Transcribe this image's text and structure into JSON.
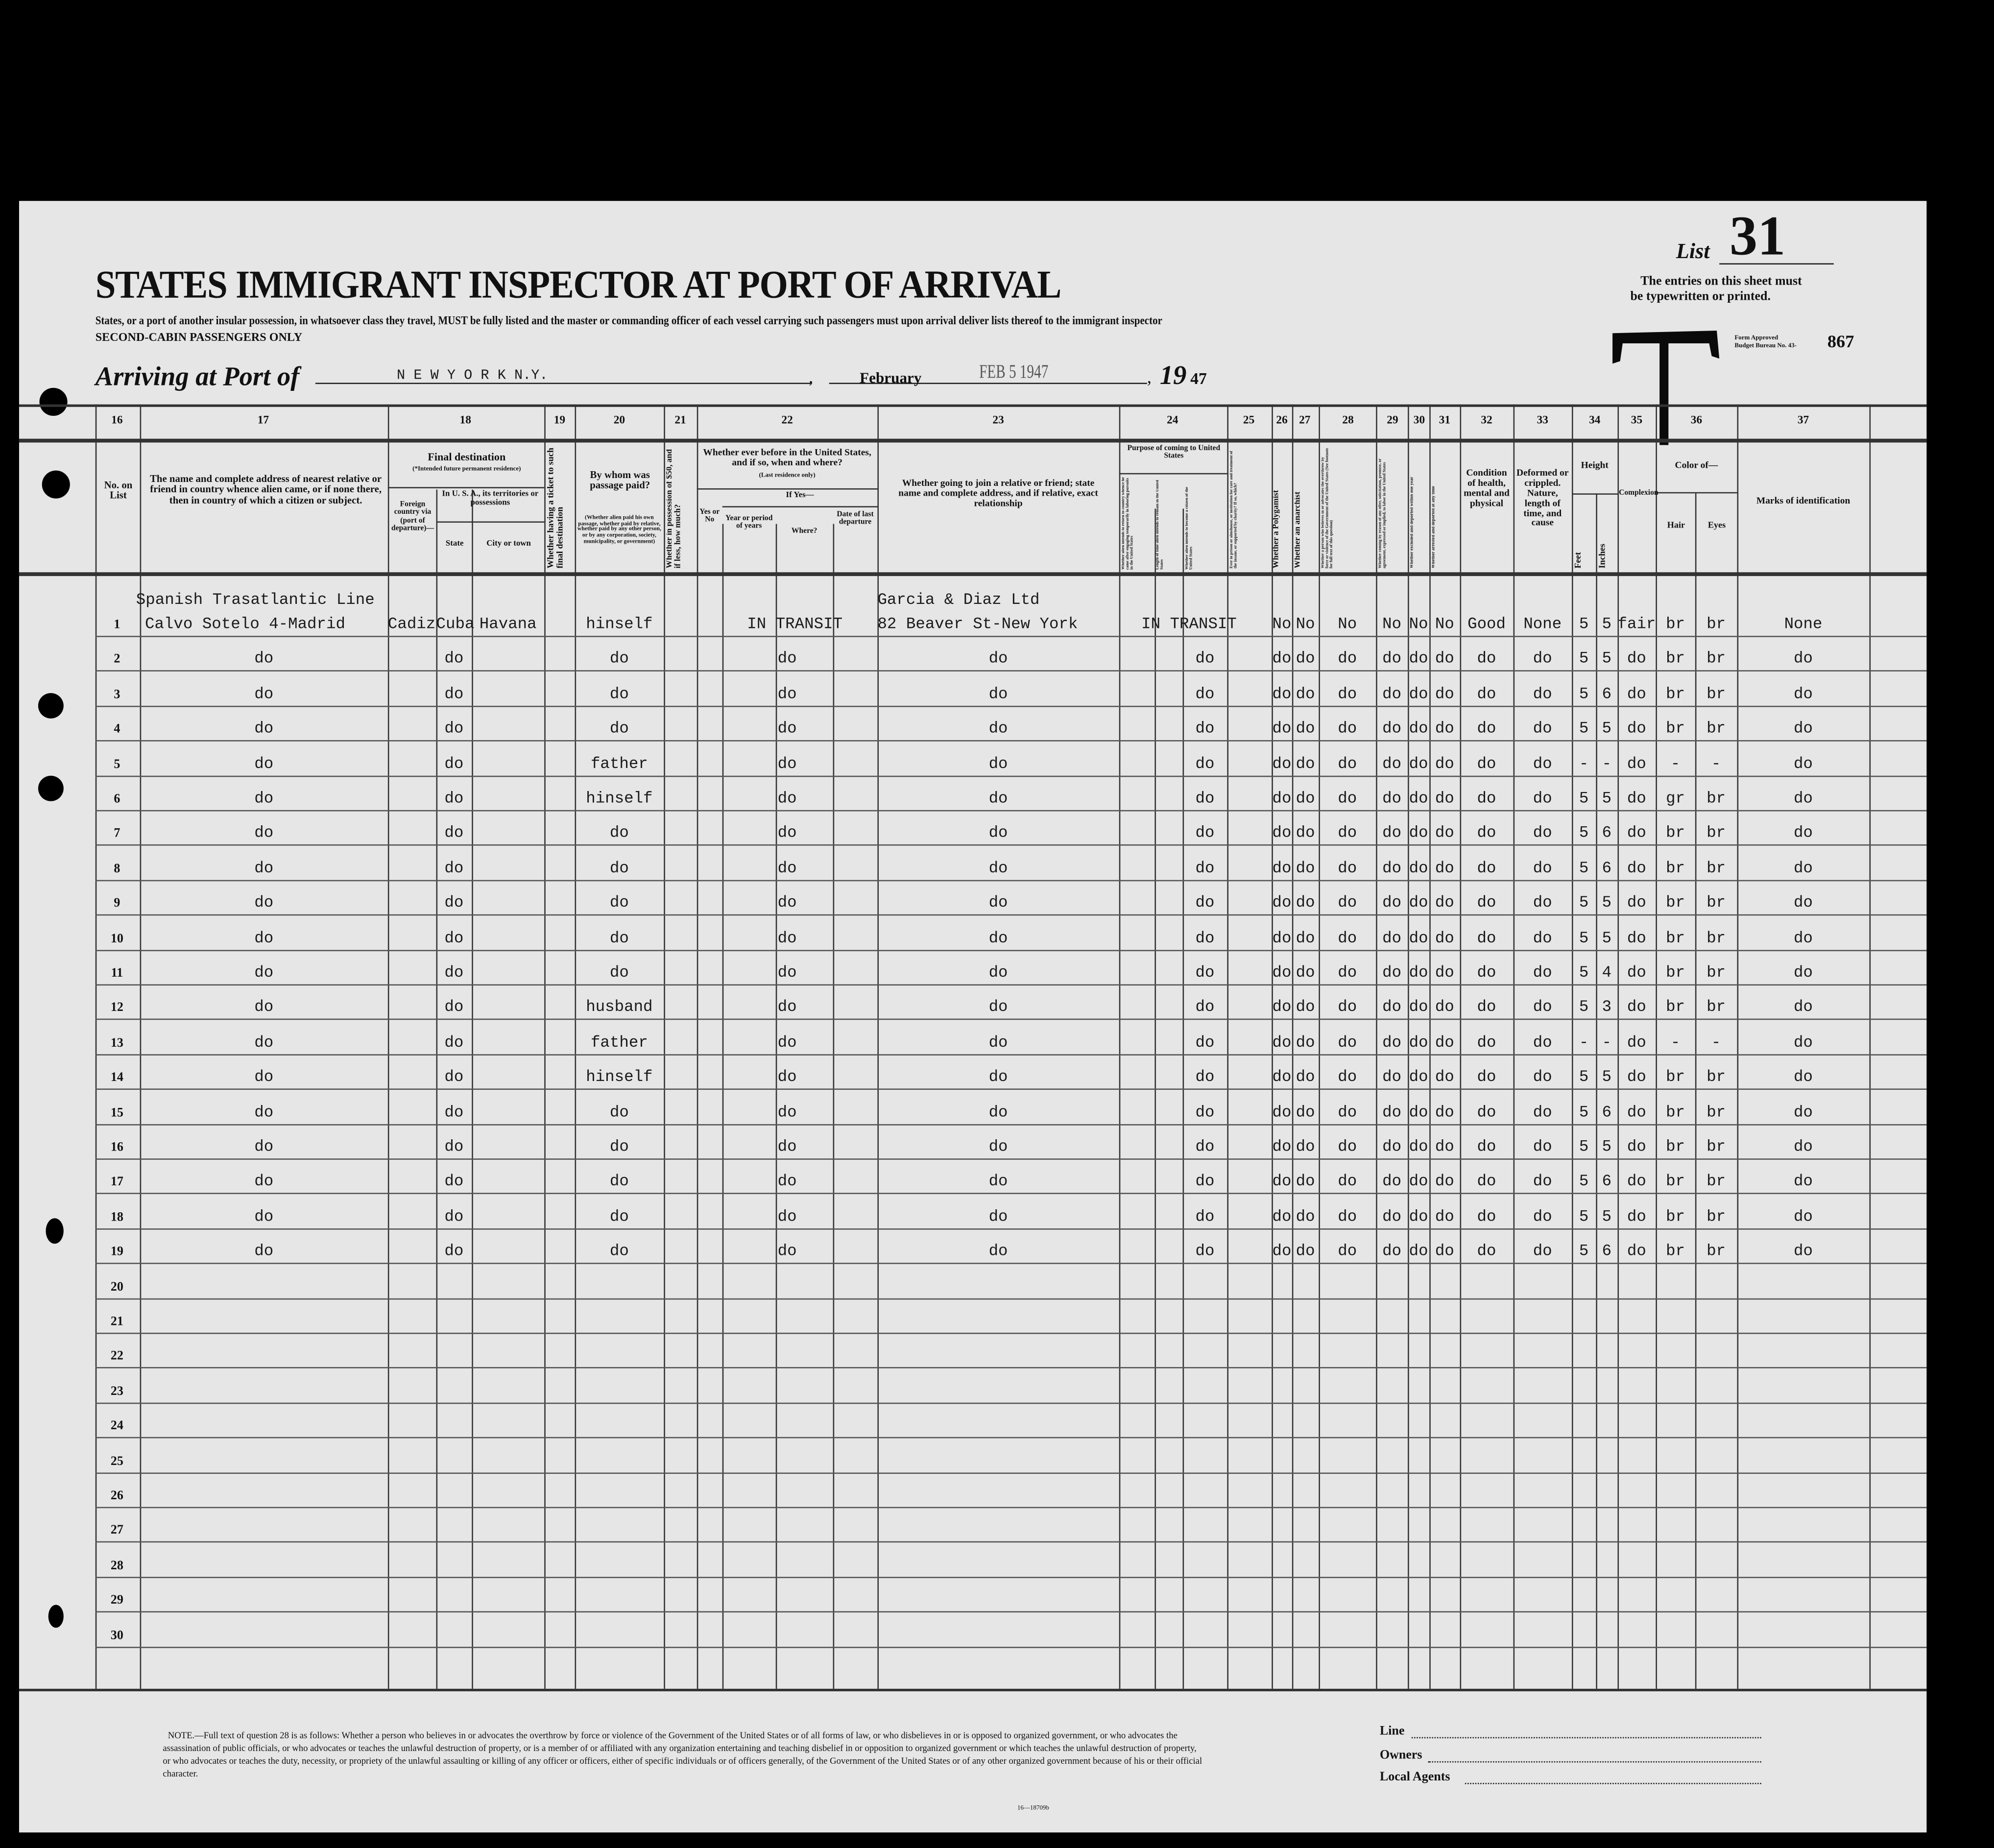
{
  "header": {
    "list_label": "List",
    "list_number": "31",
    "title": "STATES IMMIGRANT INSPECTOR AT PORT OF ARRIVAL",
    "notice_line1": "The entries on this sheet must",
    "notice_line2": "be typewritten or printed.",
    "subtitle": "States, or a port of another insular possession, in whatsoever class they travel, MUST be fully listed and the master or commanding officer of each vessel carrying such passengers must upon arrival deliver lists thereof to the immigrant inspector",
    "cabin_class": "SECOND-CABIN PASSENGERS ONLY",
    "stamp_letter": "T",
    "form_approved": "Form Approved",
    "budget_bureau": "Budget Bureau No. 43-",
    "budget_number": "867",
    "arriving_label": "Arriving at Port of",
    "port": "N E W   Y O R K   N.Y.",
    "month": "February",
    "date_stamp": "FEB 5 1947",
    "year_prefix": "19",
    "year_suffix": "47"
  },
  "columns": {
    "numbers": [
      "16",
      "17",
      "18",
      "19",
      "20",
      "21",
      "22",
      "23",
      "24",
      "25",
      "26",
      "27",
      "28",
      "29",
      "30",
      "31",
      "32",
      "33",
      "34",
      "35",
      "36",
      "37"
    ],
    "c16": "No. on List",
    "c17": "The name and complete address of nearest relative or friend in country whence alien came, or if none there, then in country of which a citizen or subject.",
    "c18_title": "Final destination",
    "c18_note": "(*Intended future permanent residence)",
    "c18_foreign": "Foreign country via (port of departure)—",
    "c18_usa": "In U. S. A., its territories or possessions",
    "c18_state": "State",
    "c18_city": "City or town",
    "c19": "Whether having a ticket to such final destination",
    "c20_title": "By whom was passage paid?",
    "c20_note": "(Whether alien paid his own passage, whether paid by relative, whether paid by any other person, or by any corporation, society, municipality, or government)",
    "c21": "Whether in possession of $50, and if less, how much?",
    "c22_title": "Whether ever before in the United States, and if so, when and where?",
    "c22_note": "(Last residence only)",
    "c22_ifyes": "If Yes—",
    "c22_yesno": "Yes or No",
    "c22_year": "Year or period of years",
    "c22_where": "Where?",
    "c22_date": "Date of last departure",
    "c23": "Whether going to join a relative or friend; state name and complete address, and if relative, exact relationship",
    "c24_title": "Purpose of coming to United States",
    "c24a": "Whether alien intends to return to country whence he came after engaging temporarily in laboring pursuits in the United States",
    "c24b": "Length of time alien intends to remain in the United States",
    "c24c": "Whether alien intends to become a citizen of the United States",
    "c25": "Ever in prison or almshouse, or institution for care and treatment of the insane, or supported by charity? If so, which?",
    "c26": "Whether a Polygamist",
    "c27": "Whether an anarchist",
    "c28": "Whether a person who believes in or advocates the overthrow by force or violence of the Government of the United States (See footnote for full text of this question)",
    "c29": "Whether coming by reason of any offer, solicitation, promise, or agreement, expressed or implied, to labor in the United States",
    "c30": "Whether excluded and deported within one year",
    "c31": "Whether arrested and deported at any time",
    "c32": "Condition of health, mental and physical",
    "c33": "Deformed or crippled. Nature, length of time, and cause",
    "c34_title": "Height",
    "c34_feet": "Feet",
    "c34_inches": "Inches",
    "c35": "Complexion",
    "c36_title": "Color of—",
    "c36_hair": "Hair",
    "c36_eyes": "Eyes",
    "c37": "Marks of identification"
  },
  "rows": [
    {
      "no": "1",
      "c17_pre": "Spanish Trasatlantic Line",
      "c17": "Calvo Sotelo 4-Madrid",
      "foreign": "Cadiz",
      "state": "Cuba",
      "city": "Havana",
      "c20": "hinself",
      "c22": "IN  TRANSIT",
      "c23_pre": "Garcia & Diaz Ltd",
      "c23": "82 Beaver St-New York",
      "c24": "IN  TRANSIT",
      "c26": "No",
      "c27": "No",
      "c28": "No",
      "c29": "No",
      "c30": "No",
      "c31": "No",
      "c32": "Good",
      "c33": "None",
      "feet": "5",
      "inches": "5",
      "c35": "fair",
      "hair": "br",
      "eyes": "br",
      "c37": "None"
    },
    {
      "no": "2",
      "c17": "do",
      "state": "do",
      "c20": "do",
      "c22": "do",
      "c23": "do",
      "c24": "do",
      "c26": "do",
      "c27": "do",
      "c28": "do",
      "c29": "do",
      "c30": "do",
      "c31": "do",
      "c32": "do",
      "c33": "do",
      "feet": "5",
      "inches": "5",
      "c35": "do",
      "hair": "br",
      "eyes": "br",
      "c37": "do"
    },
    {
      "no": "3",
      "c17": "do",
      "state": "do",
      "c20": "do",
      "c22": "do",
      "c23": "do",
      "c24": "do",
      "c26": "do",
      "c27": "do",
      "c28": "do",
      "c29": "do",
      "c30": "do",
      "c31": "do",
      "c32": "do",
      "c33": "do",
      "feet": "5",
      "inches": "6",
      "c35": "do",
      "hair": "br",
      "eyes": "br",
      "c37": "do"
    },
    {
      "no": "4",
      "c17": "do",
      "state": "do",
      "c20": "do",
      "c22": "do",
      "c23": "do",
      "c24": "do",
      "c26": "do",
      "c27": "do",
      "c28": "do",
      "c29": "do",
      "c30": "do",
      "c31": "do",
      "c32": "do",
      "c33": "do",
      "feet": "5",
      "inches": "5",
      "c35": "do",
      "hair": "br",
      "eyes": "br",
      "c37": "do"
    },
    {
      "no": "5",
      "c17": "do",
      "state": "do",
      "c20": "father",
      "c22": "do",
      "c23": "do",
      "c24": "do",
      "c26": "do",
      "c27": "do",
      "c28": "do",
      "c29": "do",
      "c30": "do",
      "c31": "do",
      "c32": "do",
      "c33": "do",
      "feet": "-",
      "inches": "-",
      "c35": "do",
      "hair": "-",
      "eyes": "-",
      "c37": "do"
    },
    {
      "no": "6",
      "c17": "do",
      "state": "do",
      "c20": "hinself",
      "c22": "do",
      "c23": "do",
      "c24": "do",
      "c26": "do",
      "c27": "do",
      "c28": "do",
      "c29": "do",
      "c30": "do",
      "c31": "do",
      "c32": "do",
      "c33": "do",
      "feet": "5",
      "inches": "5",
      "c35": "do",
      "hair": "gr",
      "eyes": "br",
      "c37": "do"
    },
    {
      "no": "7",
      "c17": "do",
      "state": "do",
      "c20": "do",
      "c22": "do",
      "c23": "do",
      "c24": "do",
      "c26": "do",
      "c27": "do",
      "c28": "do",
      "c29": "do",
      "c30": "do",
      "c31": "do",
      "c32": "do",
      "c33": "do",
      "feet": "5",
      "inches": "6",
      "c35": "do",
      "hair": "br",
      "eyes": "br",
      "c37": "do"
    },
    {
      "no": "8",
      "c17": "do",
      "state": "do",
      "c20": "do",
      "c22": "do",
      "c23": "do",
      "c24": "do",
      "c26": "do",
      "c27": "do",
      "c28": "do",
      "c29": "do",
      "c30": "do",
      "c31": "do",
      "c32": "do",
      "c33": "do",
      "feet": "5",
      "inches": "6",
      "c35": "do",
      "hair": "br",
      "eyes": "br",
      "c37": "do"
    },
    {
      "no": "9",
      "c17": "do",
      "state": "do",
      "c20": "do",
      "c22": "do",
      "c23": "do",
      "c24": "do",
      "c26": "do",
      "c27": "do",
      "c28": "do",
      "c29": "do",
      "c30": "do",
      "c31": "do",
      "c32": "do",
      "c33": "do",
      "feet": "5",
      "inches": "5",
      "c35": "do",
      "hair": "br",
      "eyes": "br",
      "c37": "do"
    },
    {
      "no": "10",
      "c17": "do",
      "state": "do",
      "c20": "do",
      "c22": "do",
      "c23": "do",
      "c24": "do",
      "c26": "do",
      "c27": "do",
      "c28": "do",
      "c29": "do",
      "c30": "do",
      "c31": "do",
      "c32": "do",
      "c33": "do",
      "feet": "5",
      "inches": "5",
      "c35": "do",
      "hair": "br",
      "eyes": "br",
      "c37": "do"
    },
    {
      "no": "11",
      "c17": "do",
      "state": "do",
      "c20": "do",
      "c22": "do",
      "c23": "do",
      "c24": "do",
      "c26": "do",
      "c27": "do",
      "c28": "do",
      "c29": "do",
      "c30": "do",
      "c31": "do",
      "c32": "do",
      "c33": "do",
      "feet": "5",
      "inches": "4",
      "c35": "do",
      "hair": "br",
      "eyes": "br",
      "c37": "do"
    },
    {
      "no": "12",
      "c17": "do",
      "state": "do",
      "c20": "husband",
      "c22": "do",
      "c23": "do",
      "c24": "do",
      "c26": "do",
      "c27": "do",
      "c28": "do",
      "c29": "do",
      "c30": "do",
      "c31": "do",
      "c32": "do",
      "c33": "do",
      "feet": "5",
      "inches": "3",
      "c35": "do",
      "hair": "br",
      "eyes": "br",
      "c37": "do"
    },
    {
      "no": "13",
      "c17": "do",
      "state": "do",
      "c20": "father",
      "c22": "do",
      "c23": "do",
      "c24": "do",
      "c26": "do",
      "c27": "do",
      "c28": "do",
      "c29": "do",
      "c30": "do",
      "c31": "do",
      "c32": "do",
      "c33": "do",
      "feet": "-",
      "inches": "-",
      "c35": "do",
      "hair": "-",
      "eyes": "-",
      "c37": "do"
    },
    {
      "no": "14",
      "c17": "do",
      "state": "do",
      "c20": "hinself",
      "c22": "do",
      "c23": "do",
      "c24": "do",
      "c26": "do",
      "c27": "do",
      "c28": "do",
      "c29": "do",
      "c30": "do",
      "c31": "do",
      "c32": "do",
      "c33": "do",
      "feet": "5",
      "inches": "5",
      "c35": "do",
      "hair": "br",
      "eyes": "br",
      "c37": "do"
    },
    {
      "no": "15",
      "c17": "do",
      "state": "do",
      "c20": "do",
      "c22": "do",
      "c23": "do",
      "c24": "do",
      "c26": "do",
      "c27": "do",
      "c28": "do",
      "c29": "do",
      "c30": "do",
      "c31": "do",
      "c32": "do",
      "c33": "do",
      "feet": "5",
      "inches": "6",
      "c35": "do",
      "hair": "br",
      "eyes": "br",
      "c37": "do"
    },
    {
      "no": "16",
      "c17": "do",
      "state": "do",
      "c20": "do",
      "c22": "do",
      "c23": "do",
      "c24": "do",
      "c26": "do",
      "c27": "do",
      "c28": "do",
      "c29": "do",
      "c30": "do",
      "c31": "do",
      "c32": "do",
      "c33": "do",
      "feet": "5",
      "inches": "5",
      "c35": "do",
      "hair": "br",
      "eyes": "br",
      "c37": "do"
    },
    {
      "no": "17",
      "c17": "do",
      "state": "do",
      "c20": "do",
      "c22": "do",
      "c23": "do",
      "c24": "do",
      "c26": "do",
      "c27": "do",
      "c28": "do",
      "c29": "do",
      "c30": "do",
      "c31": "do",
      "c32": "do",
      "c33": "do",
      "feet": "5",
      "inches": "6",
      "c35": "do",
      "hair": "br",
      "eyes": "br",
      "c37": "do"
    },
    {
      "no": "18",
      "c17": "do",
      "state": "do",
      "c20": "do",
      "c22": "do",
      "c23": "do",
      "c24": "do",
      "c26": "do",
      "c27": "do",
      "c28": "do",
      "c29": "do",
      "c30": "do",
      "c31": "do",
      "c32": "do",
      "c33": "do",
      "feet": "5",
      "inches": "5",
      "c35": "do",
      "hair": "br",
      "eyes": "br",
      "c37": "do"
    },
    {
      "no": "19",
      "c17": "do",
      "state": "do",
      "c20": "do",
      "c22": "do",
      "c23": "do",
      "c24": "do",
      "c26": "do",
      "c27": "do",
      "c28": "do",
      "c29": "do",
      "c30": "do",
      "c31": "do",
      "c32": "do",
      "c33": "do",
      "feet": "5",
      "inches": "6",
      "c35": "do",
      "hair": "br",
      "eyes": "br",
      "c37": "do"
    },
    {
      "no": "20"
    },
    {
      "no": "21"
    },
    {
      "no": "22"
    },
    {
      "no": "23"
    },
    {
      "no": "24"
    },
    {
      "no": "25"
    },
    {
      "no": "26"
    },
    {
      "no": "27"
    },
    {
      "no": "28"
    },
    {
      "no": "29"
    },
    {
      "no": "30"
    }
  ],
  "footer": {
    "note": "NOTE.—Full text of question 28 is as follows: Whether a person who believes in or advocates the overthrow by force or violence of the Government of the United States or of all forms of law, or who disbelieves in or is opposed to organized government, or who advocates the assassination of public officials, or who advocates or teaches the unlawful destruction of property, or is a member of or affiliated with any organization entertaining and teaching disbelief in or opposition to organized government or which teaches the unlawful destruction of property, or who advocates or teaches the duty, necessity, or propriety of the unlawful assaulting or killing of any officer or officers, either of specific individuals or of officers generally, of the Government of the United States or of any other organized government because of his or their official character.",
    "form_code": "16—18709b",
    "line_label": "Line",
    "owners_label": "Owners",
    "agents_label": "Local Agents"
  }
}
